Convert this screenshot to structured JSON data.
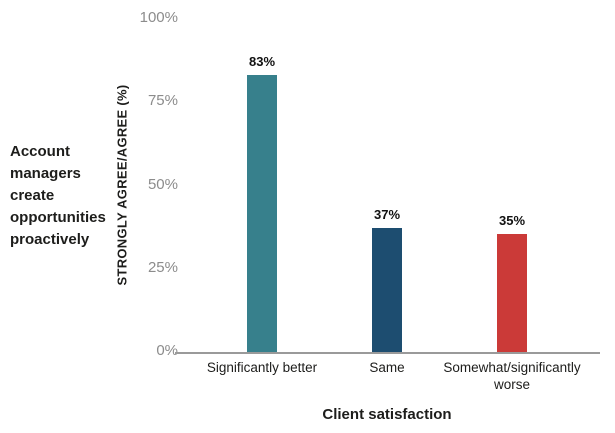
{
  "side_title": "Account managers create opportunities proactively",
  "chart_data": {
    "type": "bar",
    "title": "Account managers create opportunities proactively",
    "categories": [
      "Significantly better",
      "Same",
      "Somewhat/significantly worse"
    ],
    "values": [
      83,
      37,
      35
    ],
    "value_labels": [
      "83%",
      "37%",
      "35%"
    ],
    "bar_colors": [
      "#37808c",
      "#1d4d70",
      "#cb3a38"
    ],
    "xlabel": "Client satisfaction",
    "ylabel": "STRONGLY AGREE/AGREE (%)",
    "ytick_labels": [
      "0%",
      "25%",
      "50%",
      "75%",
      "100%"
    ],
    "ytick_values": [
      0,
      25,
      50,
      75,
      100
    ],
    "ylim": [
      0,
      100
    ],
    "grid": false,
    "legend": "none",
    "colors": {
      "axis_line": "#9a9a9a",
      "tick_text": "#8c8c8c",
      "label_text": "#1d1d1b",
      "background": "#ffffff"
    }
  }
}
